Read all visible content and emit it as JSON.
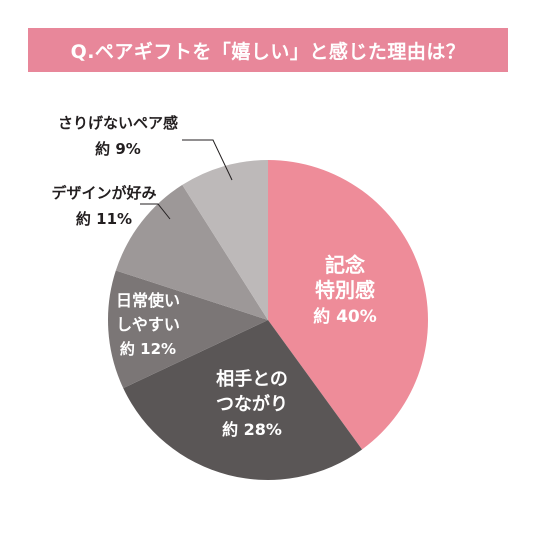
{
  "banner": {
    "title": "Q.ペアギフトを「嬉しい」と感じた理由は？",
    "color": "#e8879a"
  },
  "chart_data": {
    "type": "pie",
    "title": "Q.ペアギフトを「嬉しい」と感じた理由は？",
    "start": "12 o'clock",
    "direction": "clockwise",
    "slices": [
      {
        "label": "記念特別感",
        "lines": [
          "記念",
          "特別感"
        ],
        "value": 40,
        "value_text": "約 40%",
        "color": "#ee8c99",
        "text_color": "#ffffff",
        "label_position": "inside"
      },
      {
        "label": "相手とのつながり",
        "lines": [
          "相手との",
          "つながり"
        ],
        "value": 28,
        "value_text": "約 28%",
        "color": "#5a5656",
        "text_color": "#ffffff",
        "label_position": "inside"
      },
      {
        "label": "日常使いしやすい",
        "lines": [
          "日常使い",
          "しやすい"
        ],
        "value": 12,
        "value_text": "約 12%",
        "color": "#7b7676",
        "text_color": "#ffffff",
        "label_position": "inside"
      },
      {
        "label": "デザインが好み",
        "lines": [
          "デザインが好み"
        ],
        "value": 11,
        "value_text": "約 11%",
        "color": "#9d9898",
        "text_color": "#231f20",
        "label_position": "outside"
      },
      {
        "label": "さりげないペア感",
        "lines": [
          "さりげないペア感"
        ],
        "value": 9,
        "value_text": "約 9%",
        "color": "#bdb9b9",
        "text_color": "#231f20",
        "label_position": "outside"
      }
    ]
  }
}
